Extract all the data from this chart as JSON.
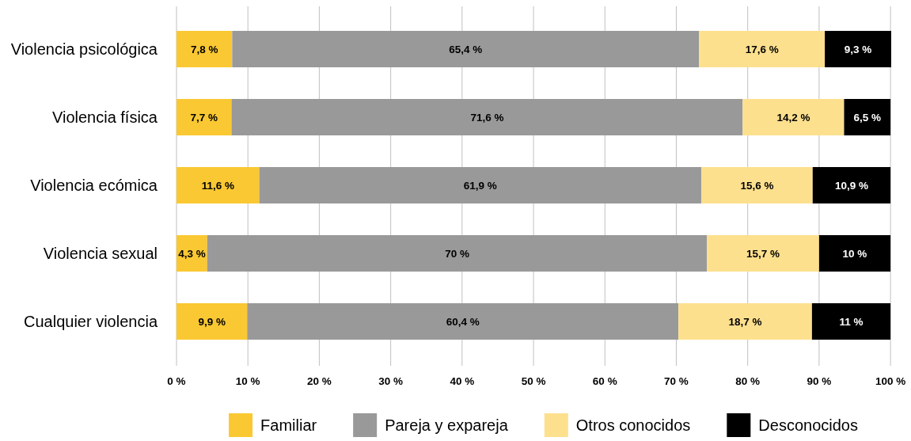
{
  "chart_data": {
    "type": "bar",
    "orientation": "horizontal",
    "stacked": true,
    "categories": [
      "Violencia psicológica",
      "Violencia física",
      "Violencia ecómica",
      "Violencia sexual",
      "Cualquier violencia"
    ],
    "series": [
      {
        "name": "Familiar",
        "color": "#fac832",
        "values": [
          7.8,
          7.7,
          11.6,
          4.3,
          9.9
        ],
        "value_labels": [
          "7,8 %",
          "7,7 %",
          "11,6 %",
          "4,3 %",
          "9,9 %"
        ]
      },
      {
        "name": "Pareja y expareja",
        "color": "#999999",
        "values": [
          65.4,
          71.6,
          61.9,
          70,
          60.4
        ],
        "value_labels": [
          "65,4 %",
          "71,6 %",
          "61,9 %",
          "70 %",
          "60,4 %"
        ]
      },
      {
        "name": "Otros conocidos",
        "color": "#fde08e",
        "values": [
          17.6,
          14.2,
          15.6,
          15.7,
          18.7
        ],
        "value_labels": [
          "17,6 %",
          "14,2 %",
          "15,6 %",
          "15,7 %",
          "18,7 %"
        ]
      },
      {
        "name": "Desconocidos",
        "color": "#000000",
        "values": [
          9.3,
          6.5,
          10.9,
          10,
          11
        ],
        "value_labels": [
          "9,3 %",
          "6,5 %",
          "10,9 %",
          "10 %",
          "11 %"
        ]
      }
    ],
    "xlim": [
      0,
      100.1
    ],
    "xticks": [
      {
        "value": 0,
        "label": "0 %"
      },
      {
        "value": 10,
        "label": "10 %"
      },
      {
        "value": 20,
        "label": "20 %"
      },
      {
        "value": 30,
        "label": "30 %"
      },
      {
        "value": 40,
        "label": "40 %"
      },
      {
        "value": 50,
        "label": "50 %"
      },
      {
        "value": 60,
        "label": "60 %"
      },
      {
        "value": 70,
        "label": "70 %"
      },
      {
        "value": 80,
        "label": "80 %"
      },
      {
        "value": 90,
        "label": "90 %"
      },
      {
        "value": 100,
        "label": "100 %"
      }
    ],
    "grid": "x",
    "legend": "bottom"
  }
}
